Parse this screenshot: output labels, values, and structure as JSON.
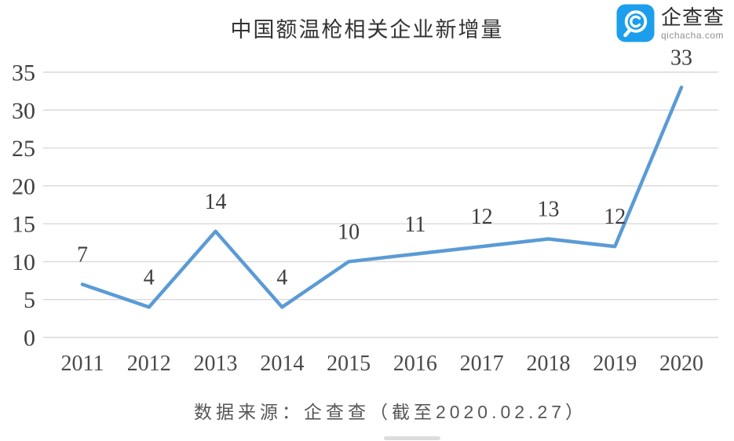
{
  "header": {
    "title": "中国额温枪相关企业新增量",
    "logo": {
      "name": "企查查",
      "domain": "qichacha.com",
      "icon": "qichacha-q-icon",
      "icon_color": "#1C9EEC"
    }
  },
  "chart_data": {
    "type": "line",
    "title": "中国额温枪相关企业新增量",
    "categories": [
      "2011",
      "2012",
      "2013",
      "2014",
      "2015",
      "2016",
      "2017",
      "2018",
      "2019",
      "2020"
    ],
    "values": [
      7,
      4,
      14,
      4,
      10,
      11,
      12,
      13,
      12,
      33
    ],
    "y_ticks": [
      0,
      5,
      10,
      15,
      20,
      25,
      30,
      35
    ],
    "ylim": [
      0,
      35
    ],
    "xlabel": "",
    "ylabel": "",
    "grid": true,
    "legend_position": "none",
    "data_labels": true,
    "line_color": "#5B9BD5",
    "gridline_color": "#D9D9D9",
    "data_label_color": "#3D3D3D",
    "tick_label_color": "#404040"
  },
  "footer": {
    "source": "数据来源：企查查（截至2020.02.27）"
  }
}
